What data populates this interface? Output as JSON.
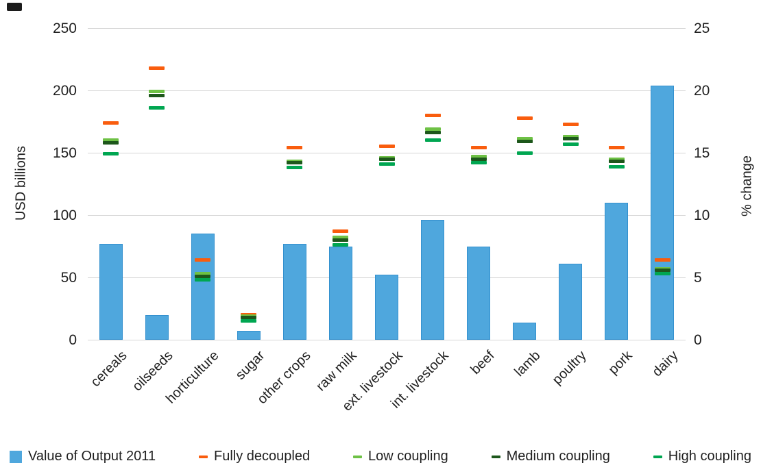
{
  "chart_data": {
    "type": "bar",
    "title": "",
    "categories": [
      "cereals",
      "oilseeds",
      "horticulture",
      "sugar",
      "other crops",
      "raw milk",
      "ext. livestock",
      "int. livestock",
      "beef",
      "lamb",
      "poultry",
      "pork",
      "dairy"
    ],
    "series": [
      {
        "name": "Value of Output 2011",
        "type": "bar",
        "axis": "left",
        "color": "#4fa7dd",
        "values": [
          77,
          20,
          85,
          7,
          77,
          75,
          52,
          96,
          75,
          14,
          61,
          110,
          204
        ]
      },
      {
        "name": "Fully decoupled",
        "type": "dash",
        "axis": "right",
        "color": "#f95d0e",
        "values": [
          17.4,
          21.8,
          6.4,
          2.0,
          15.4,
          8.7,
          15.5,
          18.0,
          15.4,
          17.8,
          17.3,
          15.4,
          6.4
        ]
      },
      {
        "name": "Low coupling",
        "type": "dash",
        "axis": "right",
        "color": "#6ec145",
        "values": [
          16.0,
          19.9,
          5.3,
          1.9,
          14.3,
          8.2,
          14.6,
          16.9,
          14.7,
          16.1,
          16.3,
          14.5,
          5.7
        ]
      },
      {
        "name": "Medium coupling",
        "type": "dash",
        "axis": "right",
        "color": "#1d571b",
        "values": [
          15.8,
          19.6,
          5.1,
          1.8,
          14.2,
          8.0,
          14.5,
          16.6,
          14.5,
          15.9,
          16.1,
          14.3,
          5.6
        ]
      },
      {
        "name": "High coupling",
        "type": "dash",
        "axis": "right",
        "color": "#00a651",
        "values": [
          14.9,
          18.6,
          4.8,
          1.5,
          13.8,
          7.6,
          14.1,
          16.0,
          14.2,
          15.0,
          15.7,
          13.9,
          5.3
        ]
      }
    ],
    "left_axis": {
      "label": "USD billions",
      "min": 0,
      "max": 250,
      "ticks": [
        0,
        50,
        100,
        150,
        200,
        250
      ]
    },
    "right_axis": {
      "label": "% change",
      "min": 0,
      "max": 25,
      "ticks": [
        0,
        5,
        10,
        15,
        20,
        25
      ]
    },
    "grid": true,
    "legend_position": "bottom"
  }
}
